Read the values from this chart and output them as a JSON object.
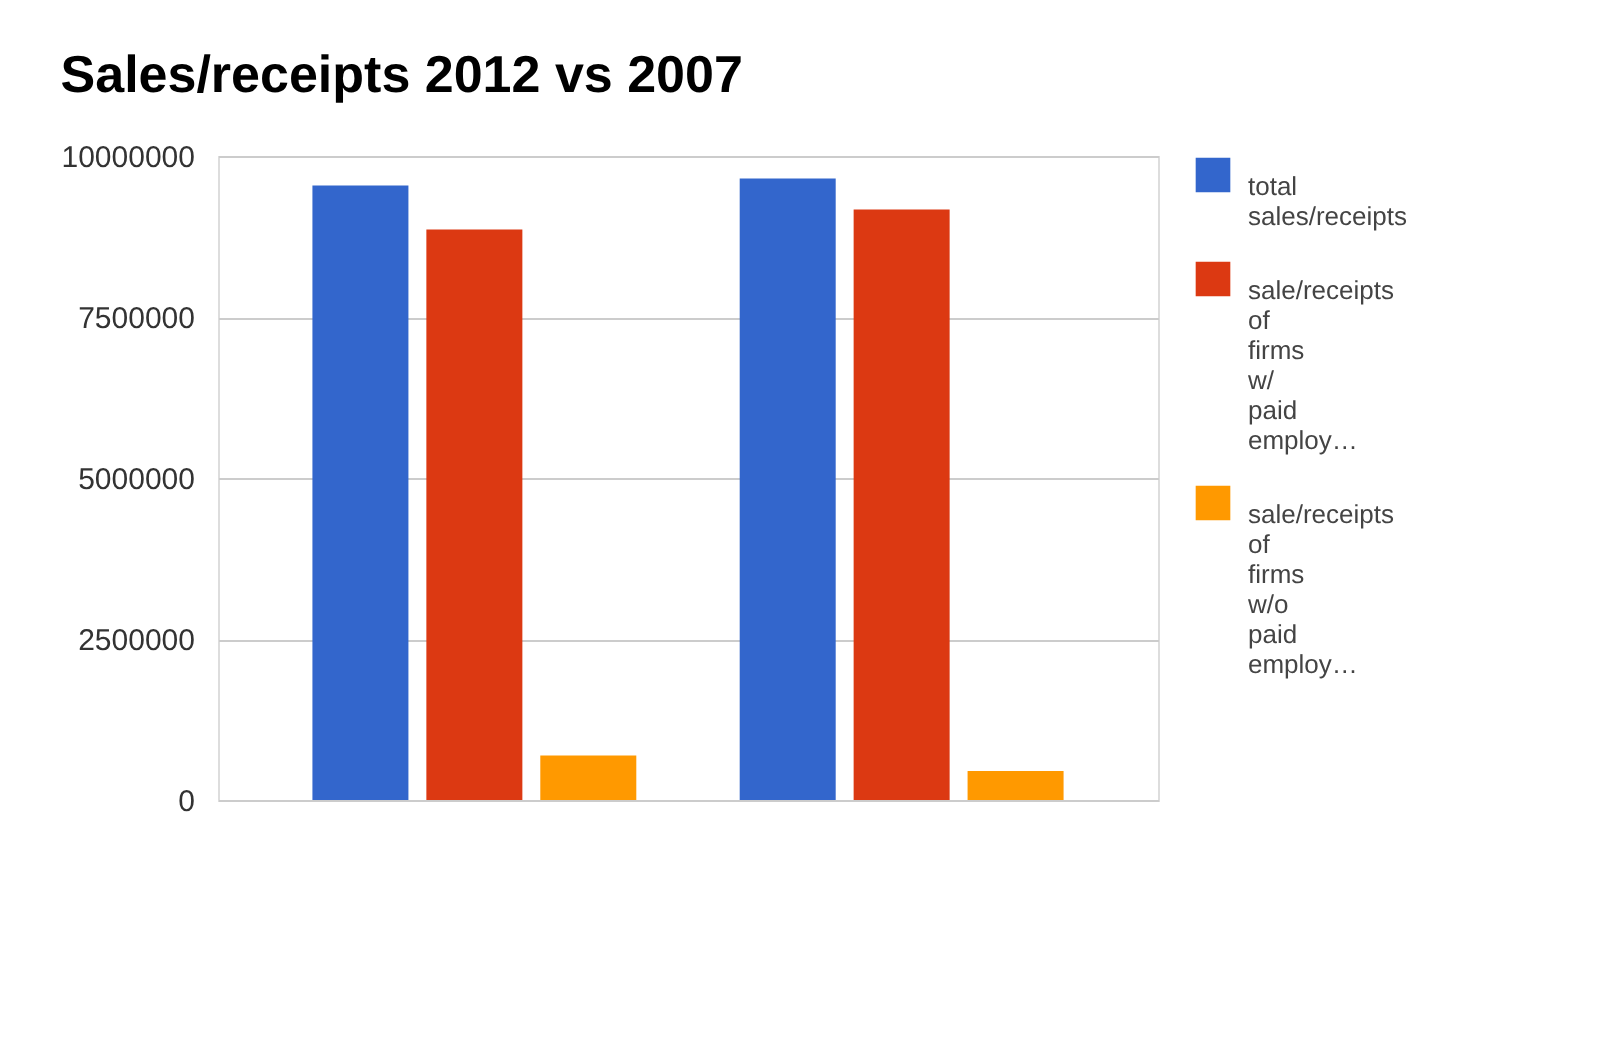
{
  "chart_data": {
    "type": "bar",
    "title": "Sales/receipts 2012 vs 2007",
    "categories": [
      null,
      null
    ],
    "series": [
      {
        "name": "total sales/receipts",
        "color": "#3366cc",
        "values": [
          9540000,
          9650000
        ]
      },
      {
        "name": "sale/receipts of firms w/ paid employ…",
        "color": "#dc3912",
        "values": [
          8860000,
          9170000
        ]
      },
      {
        "name": "sale/receipts of firms w/o paid employ…",
        "color": "#ff9900",
        "values": [
          690000,
          450000
        ]
      }
    ],
    "ylim": [
      0,
      10000000
    ],
    "yticks": [
      0,
      2500000,
      5000000,
      7500000,
      10000000
    ],
    "grid": "y",
    "legend": "top right"
  }
}
